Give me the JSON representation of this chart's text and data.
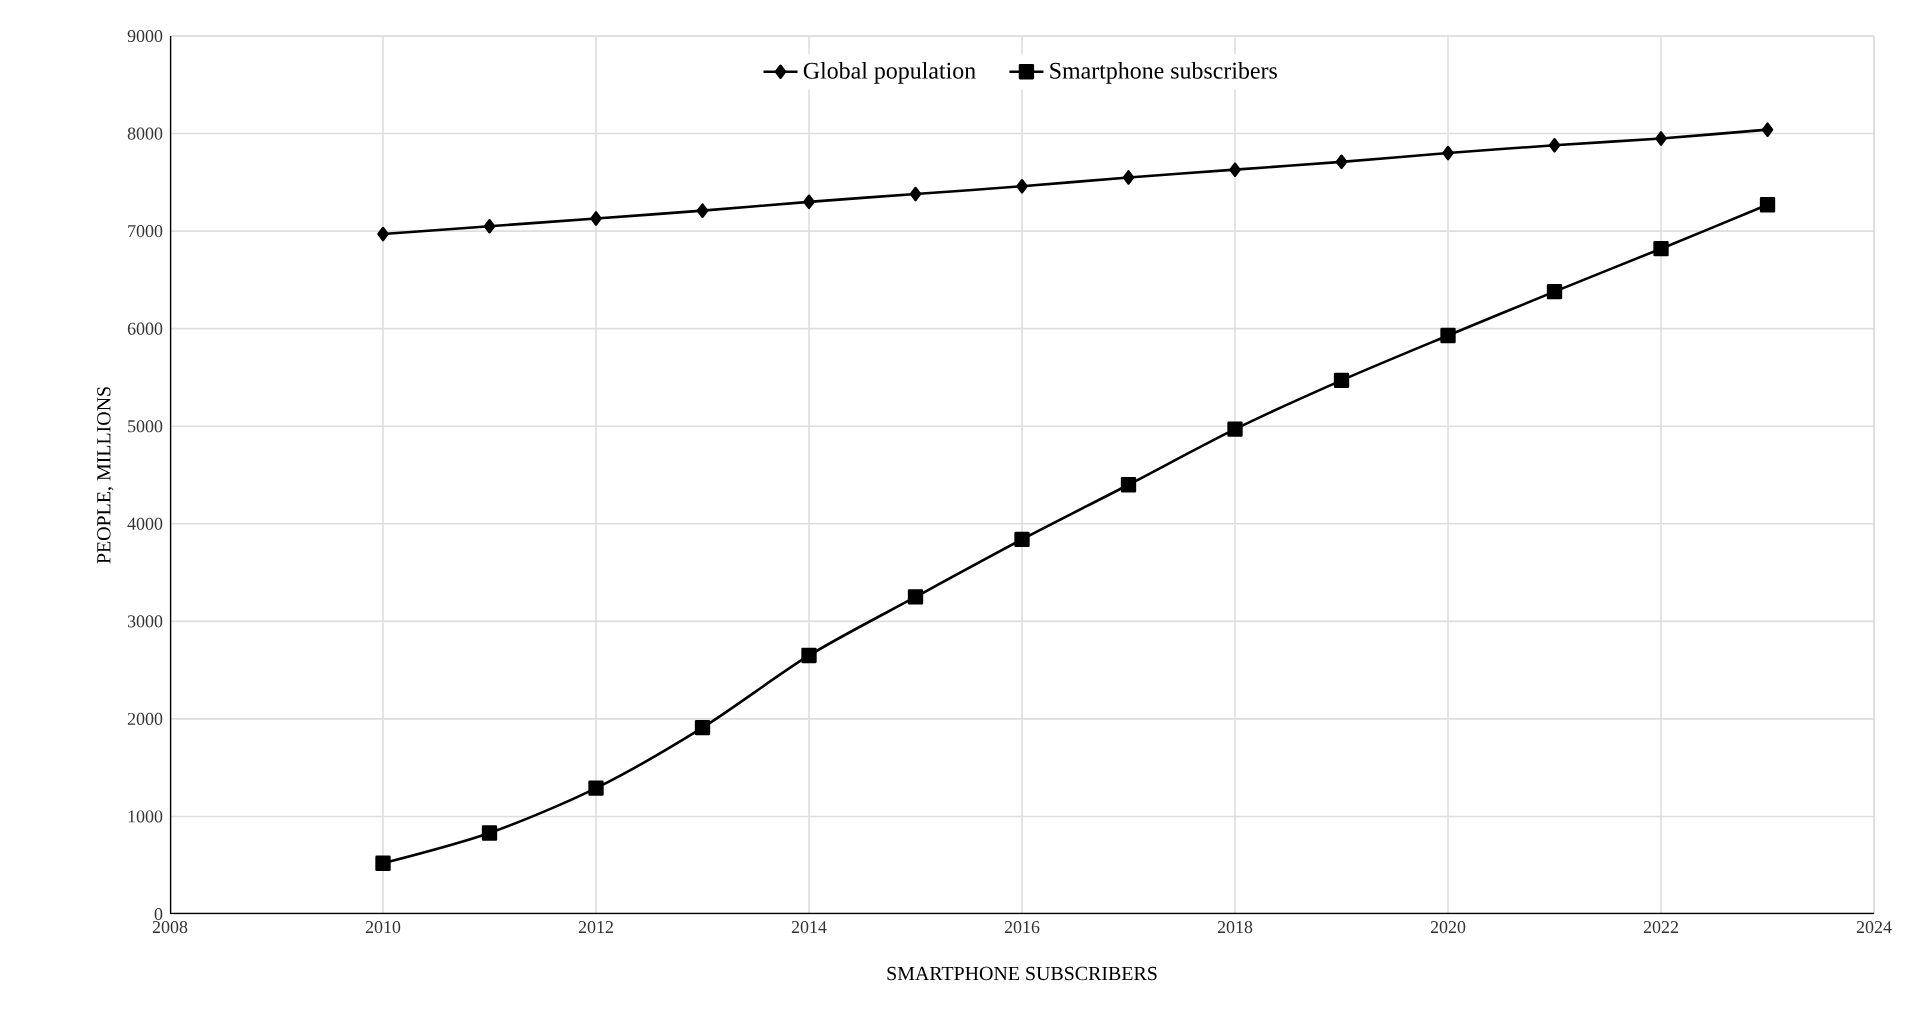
{
  "chart_data": {
    "type": "line",
    "xlabel": "SMARTPHONE SUBSCRIBERS",
    "ylabel": "PEOPLE, MILLIONS",
    "x": [
      2010,
      2011,
      2012,
      2013,
      2014,
      2015,
      2016,
      2017,
      2018,
      2019,
      2020,
      2021,
      2022,
      2023
    ],
    "series": [
      {
        "name": "Global population",
        "color": "#000000",
        "marker": "diamond",
        "values": [
          6970,
          7050,
          7130,
          7210,
          7300,
          7380,
          7460,
          7550,
          7630,
          7710,
          7800,
          7880,
          7950,
          8040
        ]
      },
      {
        "name": "Smartphone subscribers",
        "color": "#000000",
        "marker": "square",
        "values": [
          520,
          830,
          1290,
          1910,
          2650,
          3250,
          3840,
          4400,
          4970,
          5470,
          5930,
          6380,
          6820,
          7270
        ]
      }
    ],
    "xlim": [
      2008,
      2024
    ],
    "xticks": [
      2008,
      2010,
      2012,
      2014,
      2016,
      2018,
      2020,
      2022,
      2024
    ],
    "ylim": [
      0,
      9000
    ],
    "yticks": [
      0,
      1000,
      2000,
      3000,
      4000,
      5000,
      6000,
      7000,
      8000,
      9000
    ],
    "grid": true,
    "legend": "top",
    "line_style": "solid"
  }
}
